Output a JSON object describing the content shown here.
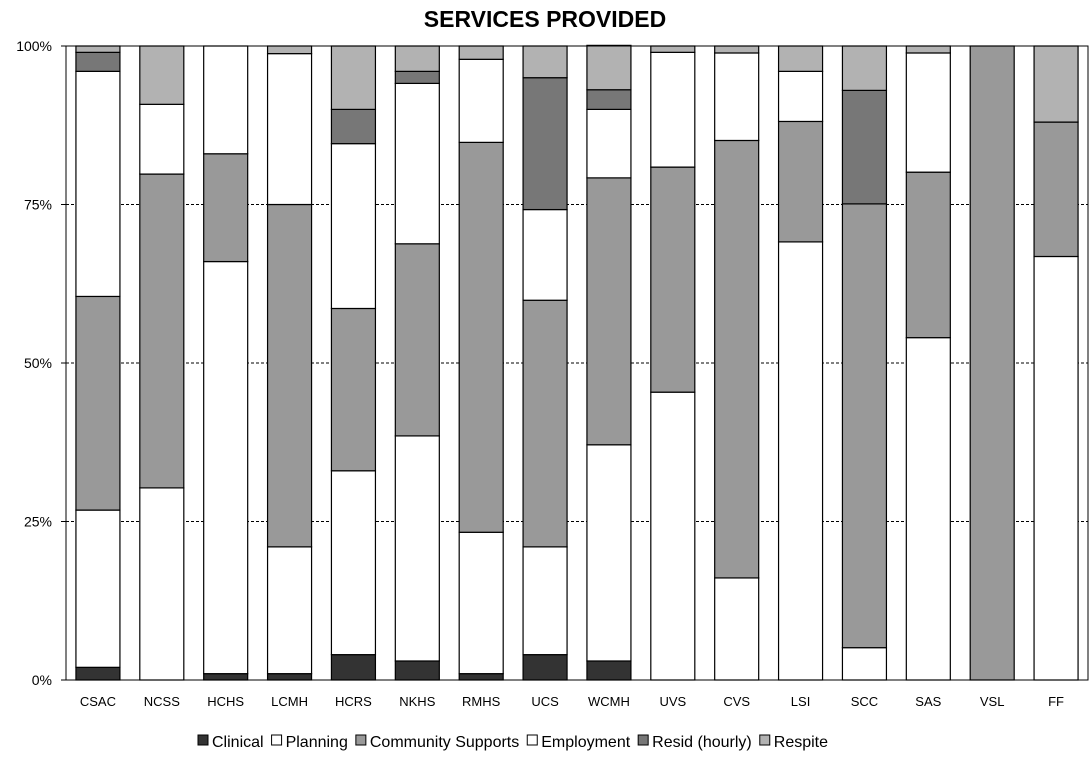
{
  "chart_data": {
    "type": "bar",
    "stacked": "percent",
    "title": "SERVICES PROVIDED",
    "xlabel": "",
    "ylabel": "",
    "ylim": [
      0,
      100
    ],
    "yticks": [
      "0%",
      "25%",
      "50%",
      "75%",
      "100%"
    ],
    "grid": "horizontal dashed",
    "legend_position": "bottom",
    "categories": [
      "CSAC",
      "NCSS",
      "HCHS",
      "LCMH",
      "HCRS",
      "NKHS",
      "RMHS",
      "UCS",
      "WCMH",
      "UVS",
      "CVS",
      "LSI",
      "SCC",
      "SAS",
      "VSL",
      "FF"
    ],
    "series": [
      {
        "name": "Clinical",
        "color": "#333333",
        "values": [
          2,
          0,
          1,
          1,
          4,
          3,
          1,
          4,
          3,
          0,
          0,
          0,
          0,
          0,
          0,
          0
        ]
      },
      {
        "name": "Planning",
        "color": "#ffffff",
        "values": [
          24.8,
          30.3,
          65,
          20,
          29,
          35.5,
          22.3,
          17,
          34.1,
          45.4,
          16.1,
          69.1,
          5.1,
          54,
          0,
          66.8
        ]
      },
      {
        "name": "Community Supports",
        "color": "#999999",
        "values": [
          33.7,
          49.5,
          17,
          54,
          25.6,
          30.3,
          61.5,
          38.9,
          42.1,
          35.5,
          69,
          19,
          70,
          26.1,
          100,
          21.2
        ]
      },
      {
        "name": "Employment",
        "color": "#ffffff",
        "values": [
          35.5,
          11,
          17,
          23.8,
          26,
          25.3,
          13.1,
          14.3,
          10.8,
          18.1,
          13.8,
          7.9,
          0,
          18.8,
          0,
          0
        ]
      },
      {
        "name": "Resid (hourly)",
        "color": "#777777",
        "values": [
          3,
          0,
          0,
          0,
          5.4,
          1.9,
          0,
          20.8,
          3.1,
          0,
          0,
          0,
          17.9,
          0,
          0,
          0
        ]
      },
      {
        "name": "Respite",
        "color": "#b2b2b2",
        "values": [
          1,
          9.2,
          0,
          1.2,
          10,
          4,
          2.1,
          5,
          7,
          1,
          1.1,
          4,
          7,
          1.1,
          0,
          12
        ]
      }
    ]
  }
}
